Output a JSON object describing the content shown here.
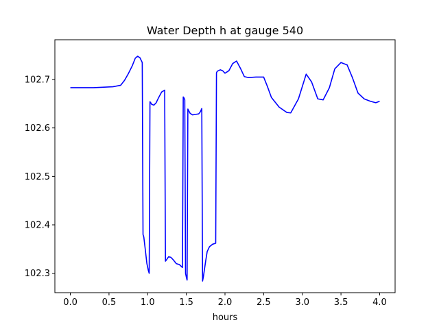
{
  "chart_data": {
    "type": "line",
    "title": "Water Depth h at gauge 540",
    "xlabel": "hours",
    "ylabel": "",
    "xlim": [
      -0.2,
      4.2
    ],
    "ylim": [
      102.26,
      102.782
    ],
    "x_ticks": [
      0.0,
      0.5,
      1.0,
      1.5,
      2.0,
      2.5,
      3.0,
      3.5,
      4.0
    ],
    "x_tick_labels": [
      "0.0",
      "0.5",
      "1.0",
      "1.5",
      "2.0",
      "2.5",
      "3.0",
      "3.5",
      "4.0"
    ],
    "y_ticks": [
      102.3,
      102.4,
      102.5,
      102.6,
      102.7
    ],
    "y_tick_labels": [
      "102.3",
      "102.4",
      "102.5",
      "102.6",
      "102.7"
    ],
    "grid": false,
    "series": [
      {
        "color": "#0000ff",
        "x": [
          0.0,
          0.3,
          0.55,
          0.65,
          0.7,
          0.75,
          0.8,
          0.84,
          0.87,
          0.9,
          0.93,
          0.94,
          0.95,
          0.97,
          0.99,
          1.01,
          1.02,
          1.03,
          1.04,
          1.05,
          1.08,
          1.11,
          1.14,
          1.18,
          1.22,
          1.23,
          1.24,
          1.27,
          1.3,
          1.33,
          1.37,
          1.41,
          1.45,
          1.46,
          1.47,
          1.48,
          1.49,
          1.5,
          1.51,
          1.52,
          1.53,
          1.55,
          1.58,
          1.62,
          1.66,
          1.68,
          1.7,
          1.71,
          1.72,
          1.73,
          1.75,
          1.77,
          1.8,
          1.84,
          1.88,
          1.89,
          1.9,
          1.94,
          1.97,
          2.0,
          2.05,
          2.1,
          2.15,
          2.2,
          2.25,
          2.3,
          2.4,
          2.5,
          2.55,
          2.6,
          2.7,
          2.8,
          2.85,
          2.95,
          3.05,
          3.12,
          3.2,
          3.27,
          3.35,
          3.42,
          3.5,
          3.58,
          3.65,
          3.72,
          3.8,
          3.88,
          3.95,
          4.0
        ],
        "y": [
          102.683,
          102.683,
          102.685,
          102.688,
          102.698,
          102.712,
          102.728,
          102.744,
          102.748,
          102.745,
          102.735,
          102.38,
          102.375,
          102.348,
          102.32,
          102.305,
          102.3,
          102.654,
          102.652,
          102.649,
          102.647,
          102.652,
          102.662,
          102.674,
          102.678,
          102.325,
          102.327,
          102.334,
          102.333,
          102.328,
          102.32,
          102.318,
          102.312,
          102.664,
          102.662,
          102.658,
          102.3,
          102.292,
          102.286,
          102.639,
          102.636,
          102.63,
          102.627,
          102.628,
          102.629,
          102.633,
          102.64,
          102.284,
          102.292,
          102.303,
          102.325,
          102.345,
          102.355,
          102.36,
          102.362,
          102.714,
          102.717,
          102.72,
          102.718,
          102.713,
          102.718,
          102.733,
          102.738,
          102.723,
          102.706,
          102.704,
          102.705,
          102.705,
          102.685,
          102.663,
          102.643,
          102.632,
          102.631,
          102.66,
          102.711,
          102.695,
          102.66,
          102.658,
          102.683,
          102.722,
          102.735,
          102.73,
          102.703,
          102.672,
          102.66,
          102.655,
          102.652,
          102.655
        ]
      }
    ]
  }
}
